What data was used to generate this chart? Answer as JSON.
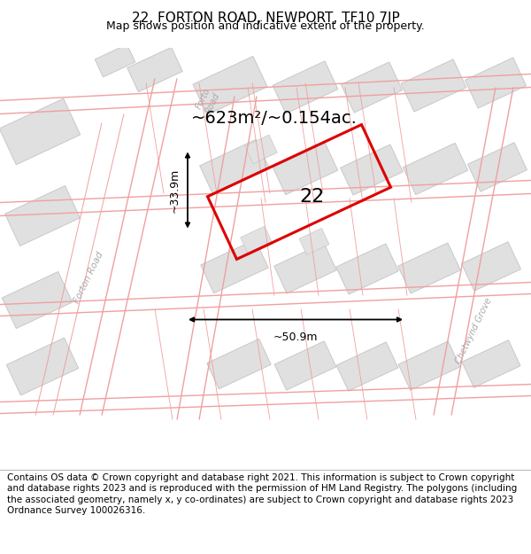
{
  "title": "22, FORTON ROAD, NEWPORT, TF10 7JP",
  "subtitle": "Map shows position and indicative extent of the property.",
  "footer": "Contains OS data © Crown copyright and database right 2021. This information is subject to Crown copyright and database rights 2023 and is reproduced with the permission of HM Land Registry. The polygons (including the associated geometry, namely x, y co-ordinates) are subject to Crown copyright and database rights 2023 Ordnance Survey 100026316.",
  "area_label": "~623m²/~0.154ac.",
  "width_label": "~50.9m",
  "height_label": "~33.9m",
  "number_label": "22",
  "map_bg": "#ffffff",
  "road_line_color": "#f0a0a0",
  "building_fill": "#e0e0e0",
  "building_edge": "#c8c8c8",
  "highlight_color": "#ff0000",
  "road_label_color": "#a0a0a0",
  "text_color": "#000000",
  "title_fontsize": 11,
  "subtitle_fontsize": 9,
  "footer_fontsize": 7.5,
  "annot_fontsize": 9,
  "area_fontsize": 14,
  "number_fontsize": 16
}
